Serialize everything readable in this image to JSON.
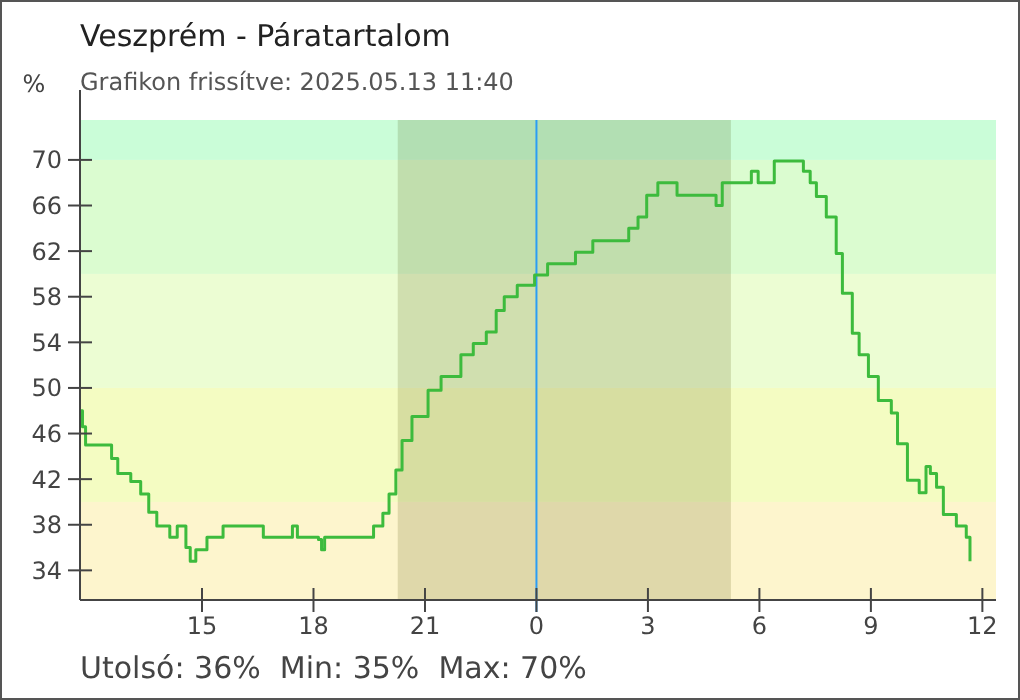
{
  "chart_data": {
    "type": "step",
    "title": "Veszprém - Páratartalom",
    "subtitle": "Grafikon frissítve: 2025.05.13 11:40",
    "ylabel": "%",
    "x": [
      "2025-05-12T11:43",
      "2025-05-12T11:47",
      "2025-05-12T11:52",
      "2025-05-12T12:29",
      "2025-05-12T12:34",
      "2025-05-12T12:44",
      "2025-05-12T13:05",
      "2025-05-12T13:21",
      "2025-05-12T13:34",
      "2025-05-12T13:47",
      "2025-05-12T14:08",
      "2025-05-12T14:20",
      "2025-05-12T14:34",
      "2025-05-12T14:41",
      "2025-05-12T14:50",
      "2025-05-12T15:08",
      "2025-05-12T15:34",
      "2025-05-12T16:34",
      "2025-05-12T16:39",
      "2025-05-12T17:16",
      "2025-05-12T17:26",
      "2025-05-12T17:34",
      "2025-05-12T18:08",
      "2025-05-12T18:13",
      "2025-05-12T18:18",
      "2025-05-12T19:31",
      "2025-05-12T19:37",
      "2025-05-12T19:52",
      "2025-05-12T20:02",
      "2025-05-12T20:13",
      "2025-05-12T20:23",
      "2025-05-12T20:39",
      "2025-05-12T21:05",
      "2025-05-12T21:26",
      "2025-05-12T21:47",
      "2025-05-12T21:58",
      "2025-05-12T22:18",
      "2025-05-12T22:39",
      "2025-05-12T22:55",
      "2025-05-12T23:08",
      "2025-05-12T23:29",
      "2025-05-12T23:57",
      "2025-05-13T00:18",
      "2025-05-13T01:03",
      "2025-05-13T01:31",
      "2025-05-13T02:18",
      "2025-05-13T02:29",
      "2025-05-13T02:44",
      "2025-05-13T02:58",
      "2025-05-13T03:16",
      "2025-05-13T03:47",
      "2025-05-13T04:40",
      "2025-05-13T04:50",
      "2025-05-13T05:00",
      "2025-05-13T05:43",
      "2025-05-13T05:47",
      "2025-05-13T05:58",
      "2025-05-13T06:14",
      "2025-05-13T06:24",
      "2025-05-13T07:06",
      "2025-05-13T07:11",
      "2025-05-13T07:22",
      "2025-05-13T07:32",
      "2025-05-13T07:48",
      "2025-05-13T08:04",
      "2025-05-13T08:14",
      "2025-05-13T08:30",
      "2025-05-13T08:41",
      "2025-05-13T08:56",
      "2025-05-13T09:12",
      "2025-05-13T09:33",
      "2025-05-13T09:43",
      "2025-05-13T09:59",
      "2025-05-13T10:18",
      "2025-05-13T10:29",
      "2025-05-13T10:36",
      "2025-05-13T10:46",
      "2025-05-13T10:57",
      "2025-05-13T11:18",
      "2025-05-13T11:34",
      "2025-05-13T11:40"
    ],
    "series": [
      {
        "color": "#3dbb3d",
        "values": [
          48,
          46.6,
          45,
          45,
          43.8,
          42.5,
          41.8,
          40.7,
          39.1,
          37.9,
          36.9,
          37.9,
          36,
          34.8,
          35.8,
          36.9,
          37.9,
          37.9,
          36.9,
          36.9,
          37.9,
          36.9,
          36.7,
          35.8,
          36.9,
          36.9,
          37.9,
          39,
          40.7,
          42.8,
          45.4,
          47.5,
          49.8,
          51,
          51,
          52.9,
          53.9,
          54.9,
          56.8,
          58,
          59,
          59.9,
          60.9,
          61.9,
          62.9,
          62.9,
          64,
          65,
          66.9,
          68,
          66.9,
          66.9,
          66,
          68,
          68,
          69,
          68,
          68,
          69.9,
          69.9,
          69,
          68,
          66.8,
          65,
          61.8,
          58.3,
          54.8,
          52.9,
          51,
          48.9,
          47.8,
          45.1,
          41.9,
          40.8,
          43.1,
          42.5,
          41.3,
          38.9,
          37.9,
          36.9,
          34.8
        ]
      }
    ],
    "xlim": [
      "2025-05-12T11:43",
      "2025-05-13T12:22"
    ],
    "ylim": [
      31.4,
      73.5
    ],
    "xticks": [
      {
        "value": "2025-05-12T15:00",
        "label": "15"
      },
      {
        "value": "2025-05-12T18:00",
        "label": "18"
      },
      {
        "value": "2025-05-12T21:00",
        "label": "21"
      },
      {
        "value": "2025-05-13T00:00",
        "label": "0"
      },
      {
        "value": "2025-05-13T03:00",
        "label": "3"
      },
      {
        "value": "2025-05-13T06:00",
        "label": "6"
      },
      {
        "value": "2025-05-13T09:00",
        "label": "9"
      },
      {
        "value": "2025-05-13T12:00",
        "label": "12"
      }
    ],
    "yticks": [
      34,
      38,
      42,
      46,
      50,
      54,
      58,
      62,
      66,
      70
    ],
    "bands": [
      {
        "axis": "y",
        "from": 31.4,
        "to": 40,
        "color": "#fdf5cd"
      },
      {
        "axis": "y",
        "from": 40,
        "to": 50,
        "color": "#f4fcc2"
      },
      {
        "axis": "y",
        "from": 50,
        "to": 60,
        "color": "#ecfdd3"
      },
      {
        "axis": "y",
        "from": 60,
        "to": 70,
        "color": "#dbfcd0"
      },
      {
        "axis": "y",
        "from": 70,
        "to": 73.5,
        "color": "#cafdd8"
      },
      {
        "axis": "x",
        "from": "2025-05-12T20:16",
        "to": "2025-05-13T05:14",
        "color": "#c8c8b0"
      }
    ],
    "ref_lines": [
      {
        "axis": "x",
        "value": "2025-05-13T00:00",
        "color": "#2a9df4"
      }
    ],
    "annotations": [
      "Utolsó: 36%  Min: 35%  Max: 70%"
    ],
    "grid": false
  }
}
